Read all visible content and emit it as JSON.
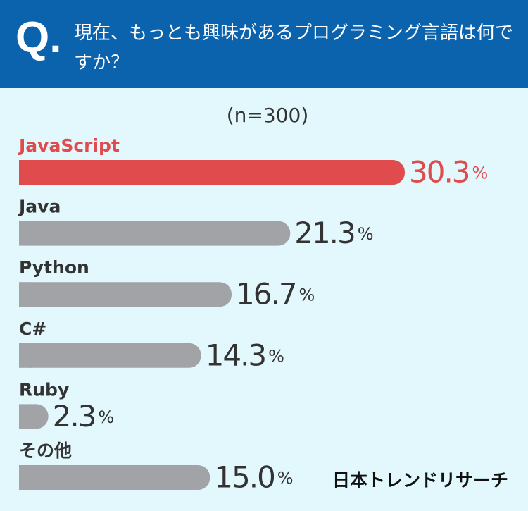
{
  "question_label": "Q.",
  "chart_data": {
    "type": "bar",
    "orientation": "horizontal",
    "title": "現在、もっとも興味があるプログラミング言語は何ですか？",
    "subtitle": "(n=300)",
    "categories": [
      "JavaScript",
      "Java",
      "Python",
      "C#",
      "Ruby",
      "その他"
    ],
    "values": [
      30.3,
      21.3,
      16.7,
      14.3,
      2.3,
      15.0
    ],
    "value_labels": [
      "30.3%",
      "21.3%",
      "16.7%",
      "14.3%",
      "2.3%",
      "15.0%"
    ],
    "colors": [
      "#e04b4d",
      "#a2a3a7",
      "#a2a3a7",
      "#a2a3a7",
      "#a2a3a7",
      "#a2a3a7"
    ],
    "label_colors": [
      "#e04b4d",
      "#333333",
      "#333333",
      "#333333",
      "#333333",
      "#333333"
    ]
  },
  "brand": "日本トレンドリサーチ"
}
